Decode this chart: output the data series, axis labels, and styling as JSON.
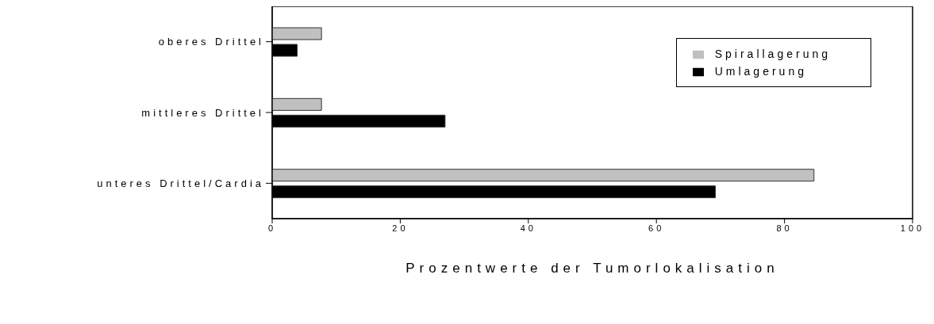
{
  "chart_data": {
    "type": "bar",
    "orientation": "horizontal",
    "xlabel": "Prozentwerte der Tumorlokalisation",
    "categories": [
      "oberes Drittel",
      "mittleres Drittel",
      "unteres Drittel/Cardia"
    ],
    "series": [
      {
        "name": "Spirallagerung",
        "color": "#c0c0c0",
        "values": [
          7.7,
          7.7,
          84.6
        ]
      },
      {
        "name": "Umlagerung",
        "color": "#000000",
        "values": [
          3.9,
          27.0,
          69.2
        ]
      }
    ],
    "xlim": [
      0,
      100
    ],
    "xticks": [
      0,
      20,
      40,
      60,
      80,
      100
    ],
    "grid": false,
    "legend": "top right"
  }
}
